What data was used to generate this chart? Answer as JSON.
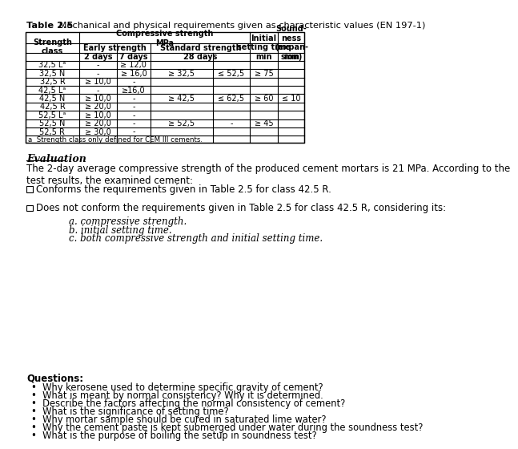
{
  "title_bold": "Table 2.5",
  "title_normal": " Mechanical and physical requirements given as characteristic values (EN 197-1)",
  "table": {
    "footnote": "a  Strength class only defined for CEM III cements."
  },
  "evaluation_title": "Evaluation",
  "evaluation_text1": "The 2-day average compressive strength of the produced cement mortars is 21 MPa. According to the\ntest results, the examined cement:",
  "checkbox1": "Conforms the requirements given in Table 2.5 for class 42.5 R.",
  "checkbox2_main": "Does not conform the requirements given in Table 2.5 for class 42.5 R, considering its:",
  "checkbox2_items": [
    "a. compressive strength.",
    "b. initial setting time.",
    "c. both compressive strength and initial setting time."
  ],
  "questions_title": "Questions:",
  "questions": [
    "Why kerosene used to determine specific gravity of cement?",
    "What is meant by normal consistency? Why it is determined.",
    "Describe the factors affecting the normal consistency of cement?",
    "What is the significance of setting time?",
    "Why mortar sample should be cured in saturated lime water?",
    "Why the cement paste is kept submerged under water during the soundness test?",
    "What is the purpose of boiling the setup in soundness test?"
  ],
  "bg_color": "#ffffff",
  "text_color": "#000000"
}
